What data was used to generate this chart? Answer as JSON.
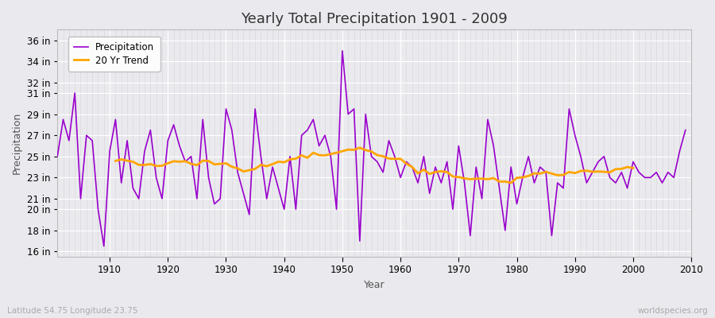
{
  "title": "Yearly Total Precipitation 1901 - 2009",
  "xlabel": "Year",
  "ylabel": "Precipitation",
  "subtitle": "Latitude 54.75 Longitude 23.75",
  "watermark": "worldspecies.org",
  "years": [
    1901,
    1902,
    1903,
    1904,
    1905,
    1906,
    1907,
    1908,
    1909,
    1910,
    1911,
    1912,
    1913,
    1914,
    1915,
    1916,
    1917,
    1918,
    1919,
    1920,
    1921,
    1922,
    1923,
    1924,
    1925,
    1926,
    1927,
    1928,
    1929,
    1930,
    1931,
    1932,
    1933,
    1934,
    1935,
    1936,
    1937,
    1938,
    1939,
    1940,
    1941,
    1942,
    1943,
    1944,
    1945,
    1946,
    1947,
    1948,
    1949,
    1950,
    1951,
    1952,
    1953,
    1954,
    1955,
    1956,
    1957,
    1958,
    1959,
    1960,
    1961,
    1962,
    1963,
    1964,
    1965,
    1966,
    1967,
    1968,
    1969,
    1970,
    1971,
    1972,
    1973,
    1974,
    1975,
    1976,
    1977,
    1978,
    1979,
    1980,
    1981,
    1982,
    1983,
    1984,
    1985,
    1986,
    1987,
    1988,
    1989,
    1990,
    1991,
    1992,
    1993,
    1994,
    1995,
    1996,
    1997,
    1998,
    1999,
    2000,
    2001,
    2002,
    2003,
    2004,
    2005,
    2006,
    2007,
    2008,
    2009
  ],
  "precip_in": [
    25.0,
    28.5,
    26.5,
    31.0,
    21.0,
    27.0,
    26.5,
    20.0,
    16.5,
    25.5,
    28.5,
    22.5,
    26.5,
    22.0,
    21.0,
    25.5,
    27.5,
    23.0,
    21.0,
    26.5,
    28.0,
    26.0,
    24.5,
    25.0,
    21.0,
    28.5,
    23.0,
    20.5,
    21.0,
    29.5,
    27.5,
    23.5,
    21.5,
    19.5,
    29.5,
    25.0,
    21.0,
    24.0,
    22.0,
    20.0,
    25.0,
    20.0,
    27.0,
    27.5,
    28.5,
    26.0,
    27.0,
    25.0,
    20.0,
    35.0,
    29.0,
    29.5,
    17.0,
    29.0,
    25.0,
    24.5,
    23.5,
    26.5,
    25.0,
    23.0,
    24.5,
    24.0,
    22.5,
    25.0,
    21.5,
    24.0,
    22.5,
    24.5,
    20.0,
    26.0,
    22.5,
    17.5,
    24.0,
    21.0,
    28.5,
    26.0,
    22.0,
    18.0,
    24.0,
    20.5,
    23.0,
    25.0,
    22.5,
    24.0,
    23.5,
    17.5,
    22.5,
    22.0,
    29.5,
    27.0,
    25.0,
    22.5,
    23.5,
    24.5,
    25.0,
    23.0,
    22.5,
    23.5,
    22.0,
    24.5,
    23.5,
    23.0,
    23.0,
    23.5,
    22.5,
    23.5,
    23.0,
    25.5,
    27.5
  ],
  "precip_color": "#9900cc",
  "trend_color": "#ffa500",
  "bg_color": "#eaeaee",
  "grid_major_color": "#ffffff",
  "grid_minor_color": "#d8d8de",
  "yticks": [
    16,
    18,
    20,
    21,
    23,
    25,
    27,
    29,
    31,
    32,
    34,
    36
  ],
  "ylim": [
    15.5,
    37.0
  ],
  "xlim": [
    1901,
    2010
  ]
}
